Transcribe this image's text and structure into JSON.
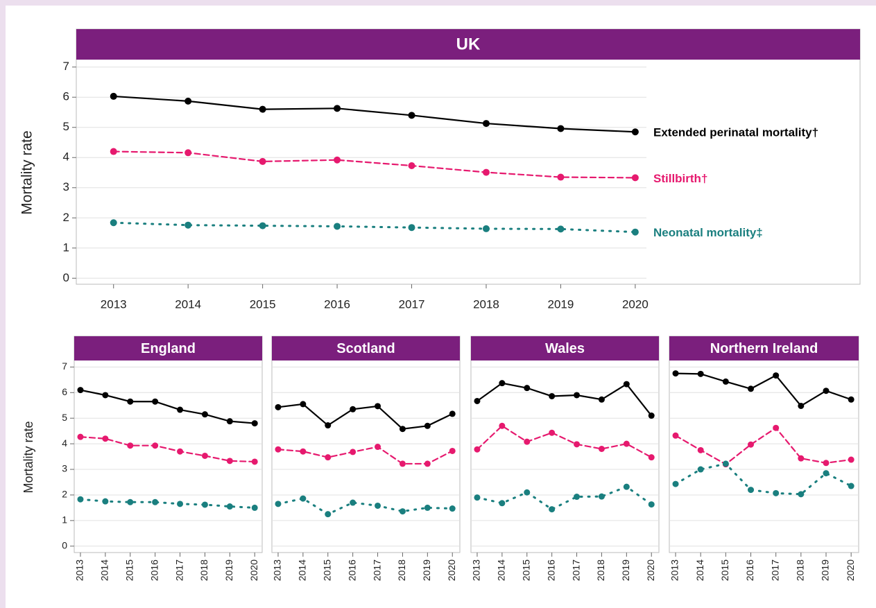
{
  "chart_data": [
    {
      "type": "line",
      "title": "UK",
      "ylabel": "Mortality rate",
      "end_labels": true,
      "ytick_labels": true,
      "rotate_x_labels": false,
      "x": [
        2013,
        2014,
        2015,
        2016,
        2017,
        2018,
        2019,
        2020
      ],
      "xlim": [
        2012.5,
        2020.15
      ],
      "xticks": [
        2013,
        2014,
        2015,
        2016,
        2017,
        2018,
        2019,
        2020
      ],
      "ylim": [
        -0.2,
        7.2
      ],
      "yticks": [
        0,
        1,
        2,
        3,
        4,
        5,
        6,
        7
      ],
      "grid": true,
      "series": [
        {
          "name": "Extended perinatal mortality†",
          "color": "#000000",
          "dash": "solid",
          "values": [
            6.03,
            5.87,
            5.6,
            5.63,
            5.4,
            5.13,
            4.96,
            4.85
          ]
        },
        {
          "name": "Stillbirth†",
          "color": "#e6196e",
          "dash": "dashed",
          "values": [
            4.2,
            4.16,
            3.87,
            3.92,
            3.73,
            3.51,
            3.35,
            3.33
          ]
        },
        {
          "name": "Neonatal mortality‡",
          "color": "#1a7f7f",
          "dash": "dotted",
          "values": [
            1.84,
            1.76,
            1.74,
            1.72,
            1.68,
            1.64,
            1.63,
            1.53
          ]
        }
      ]
    },
    {
      "type": "line",
      "title": "England",
      "ylabel": "Mortality rate",
      "end_labels": false,
      "ytick_labels": true,
      "rotate_x_labels": true,
      "x": [
        2013,
        2014,
        2015,
        2016,
        2017,
        2018,
        2019,
        2020
      ],
      "xlim": [
        2012.75,
        2020.3
      ],
      "xticks": [
        2013,
        2014,
        2015,
        2016,
        2017,
        2018,
        2019,
        2020
      ],
      "ylim": [
        -0.25,
        7.2
      ],
      "yticks": [
        0,
        1,
        2,
        3,
        4,
        5,
        6,
        7
      ],
      "grid": true,
      "series": [
        {
          "color": "#000000",
          "dash": "solid",
          "values": [
            6.1,
            5.9,
            5.65,
            5.65,
            5.33,
            5.15,
            4.88,
            4.8
          ]
        },
        {
          "color": "#e6196e",
          "dash": "dashed",
          "values": [
            4.27,
            4.2,
            3.93,
            3.93,
            3.7,
            3.53,
            3.33,
            3.3
          ]
        },
        {
          "color": "#1a7f7f",
          "dash": "dotted",
          "values": [
            1.83,
            1.75,
            1.72,
            1.72,
            1.65,
            1.62,
            1.55,
            1.5
          ]
        }
      ]
    },
    {
      "type": "line",
      "title": "Scotland",
      "end_labels": false,
      "ytick_labels": false,
      "rotate_x_labels": true,
      "x": [
        2013,
        2014,
        2015,
        2016,
        2017,
        2018,
        2019,
        2020
      ],
      "xlim": [
        2012.75,
        2020.3
      ],
      "xticks": [
        2013,
        2014,
        2015,
        2016,
        2017,
        2018,
        2019,
        2020
      ],
      "ylim": [
        -0.25,
        7.2
      ],
      "yticks": [
        0,
        1,
        2,
        3,
        4,
        5,
        6,
        7
      ],
      "grid": true,
      "series": [
        {
          "color": "#000000",
          "dash": "solid",
          "values": [
            5.43,
            5.55,
            4.72,
            5.35,
            5.47,
            4.58,
            4.7,
            5.17
          ]
        },
        {
          "color": "#e6196e",
          "dash": "dashed",
          "values": [
            3.78,
            3.7,
            3.47,
            3.68,
            3.88,
            3.22,
            3.22,
            3.72
          ]
        },
        {
          "color": "#1a7f7f",
          "dash": "dotted",
          "values": [
            1.65,
            1.86,
            1.25,
            1.7,
            1.58,
            1.36,
            1.5,
            1.47
          ]
        }
      ]
    },
    {
      "type": "line",
      "title": "Wales",
      "end_labels": false,
      "ytick_labels": false,
      "rotate_x_labels": true,
      "x": [
        2013,
        2014,
        2015,
        2016,
        2017,
        2018,
        2019,
        2020
      ],
      "xlim": [
        2012.75,
        2020.3
      ],
      "xticks": [
        2013,
        2014,
        2015,
        2016,
        2017,
        2018,
        2019,
        2020
      ],
      "ylim": [
        -0.25,
        7.2
      ],
      "yticks": [
        0,
        1,
        2,
        3,
        4,
        5,
        6,
        7
      ],
      "grid": true,
      "series": [
        {
          "color": "#000000",
          "dash": "solid",
          "values": [
            5.67,
            6.37,
            6.18,
            5.86,
            5.9,
            5.73,
            6.33,
            5.1
          ]
        },
        {
          "color": "#e6196e",
          "dash": "dashed",
          "values": [
            3.78,
            4.7,
            4.08,
            4.43,
            3.98,
            3.8,
            4.0,
            3.47
          ]
        },
        {
          "color": "#1a7f7f",
          "dash": "dotted",
          "values": [
            1.9,
            1.68,
            2.1,
            1.44,
            1.93,
            1.94,
            2.32,
            1.63
          ]
        }
      ]
    },
    {
      "type": "line",
      "title": "Northern Ireland",
      "end_labels": false,
      "ytick_labels": false,
      "rotate_x_labels": true,
      "x": [
        2013,
        2014,
        2015,
        2016,
        2017,
        2018,
        2019,
        2020
      ],
      "xlim": [
        2012.75,
        2020.3
      ],
      "xticks": [
        2013,
        2014,
        2015,
        2016,
        2017,
        2018,
        2019,
        2020
      ],
      "ylim": [
        -0.25,
        7.2
      ],
      "yticks": [
        0,
        1,
        2,
        3,
        4,
        5,
        6,
        7
      ],
      "grid": true,
      "series": [
        {
          "color": "#000000",
          "dash": "solid",
          "values": [
            6.75,
            6.73,
            6.43,
            6.15,
            6.67,
            5.48,
            6.07,
            5.73
          ]
        },
        {
          "color": "#e6196e",
          "dash": "dashed",
          "values": [
            4.32,
            3.75,
            3.2,
            3.97,
            4.62,
            3.43,
            3.25,
            3.38
          ]
        },
        {
          "color": "#1a7f7f",
          "dash": "dotted",
          "values": [
            2.43,
            3.0,
            3.22,
            2.2,
            2.07,
            2.03,
            2.85,
            2.35
          ]
        }
      ]
    }
  ]
}
